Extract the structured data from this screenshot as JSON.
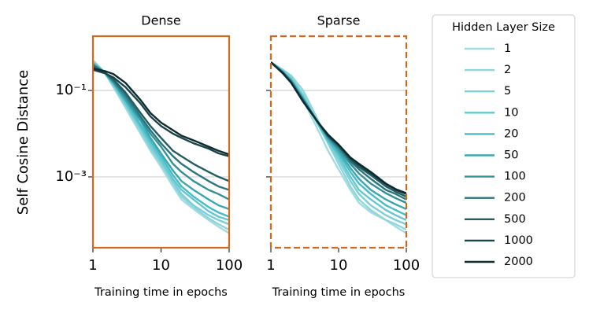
{
  "chart_data": [
    {
      "type": "line",
      "title": "Dense",
      "ylabel": "Self Cosine Distance",
      "xlabel": "Training time in epochs",
      "xscale": "log",
      "yscale": "log",
      "xlim": [
        1,
        100
      ],
      "ylim": [
        2.3e-05,
        1.8
      ],
      "xticks": [
        1,
        10,
        100
      ],
      "yticks": [
        {
          "value": 0.1,
          "label": "10⁻¹"
        },
        {
          "value": 0.001,
          "label": "10⁻³"
        }
      ],
      "grid": true,
      "frame_color": "#d2691e",
      "frame_style": "solid",
      "legend_title": "Hidden Layer Size",
      "legend": "right outside",
      "x": [
        1,
        1.5,
        2,
        3,
        5,
        7,
        10,
        15,
        20,
        30,
        50,
        70,
        100
      ],
      "series": [
        {
          "name": "1",
          "color": "#a3dbe0",
          "values": [
            0.5,
            0.25,
            0.12,
            0.04,
            0.01,
            0.004,
            0.0017,
            0.0006,
            0.0003,
            0.00018,
            0.0001,
            7e-05,
            5e-05
          ]
        },
        {
          "name": "2",
          "color": "#8fd5dc",
          "values": [
            0.5,
            0.26,
            0.13,
            0.045,
            0.011,
            0.0045,
            0.002,
            0.0007,
            0.00035,
            0.0002,
            0.00011,
            8e-05,
            6e-05
          ]
        },
        {
          "name": "5",
          "color": "#7ccfd7",
          "values": [
            0.45,
            0.25,
            0.13,
            0.05,
            0.013,
            0.005,
            0.0022,
            0.0008,
            0.0004,
            0.00022,
            0.00013,
            0.0001,
            8e-05
          ]
        },
        {
          "name": "10",
          "color": "#62c7d0",
          "values": [
            0.45,
            0.26,
            0.14,
            0.05,
            0.014,
            0.006,
            0.0025,
            0.0009,
            0.0005,
            0.0003,
            0.00016,
            0.00012,
            0.0001
          ]
        },
        {
          "name": "20",
          "color": "#48bcc6",
          "values": [
            0.42,
            0.26,
            0.15,
            0.06,
            0.016,
            0.007,
            0.003,
            0.0011,
            0.0006,
            0.00035,
            0.0002,
            0.00015,
            0.00012
          ]
        },
        {
          "name": "50",
          "color": "#3ba7b1",
          "values": [
            0.4,
            0.25,
            0.15,
            0.06,
            0.02,
            0.008,
            0.0035,
            0.0014,
            0.0008,
            0.0005,
            0.0003,
            0.00022,
            0.00018
          ]
        },
        {
          "name": "100",
          "color": "#338f98",
          "values": [
            0.4,
            0.26,
            0.16,
            0.07,
            0.022,
            0.01,
            0.005,
            0.002,
            0.0013,
            0.0008,
            0.0005,
            0.0004,
            0.0003
          ]
        },
        {
          "name": "200",
          "color": "#2b767e",
          "values": [
            0.38,
            0.26,
            0.17,
            0.08,
            0.025,
            0.012,
            0.006,
            0.003,
            0.002,
            0.0013,
            0.0008,
            0.0006,
            0.0005
          ]
        },
        {
          "name": "500",
          "color": "#235d63",
          "values": [
            0.35,
            0.26,
            0.18,
            0.09,
            0.03,
            0.015,
            0.008,
            0.004,
            0.003,
            0.002,
            0.0013,
            0.001,
            0.0008
          ]
        },
        {
          "name": "1000",
          "color": "#19444a",
          "values": [
            0.3,
            0.25,
            0.2,
            0.12,
            0.05,
            0.025,
            0.015,
            0.01,
            0.008,
            0.006,
            0.0045,
            0.0035,
            0.003
          ]
        },
        {
          "name": "2000",
          "color": "#0e2b2f",
          "values": [
            0.32,
            0.28,
            0.24,
            0.15,
            0.06,
            0.03,
            0.018,
            0.012,
            0.009,
            0.007,
            0.005,
            0.004,
            0.0033
          ]
        }
      ]
    },
    {
      "type": "line",
      "title": "Sparse",
      "xlabel": "Training time in epochs",
      "xscale": "log",
      "yscale": "log",
      "xlim": [
        1,
        100
      ],
      "ylim": [
        2.3e-05,
        1.8
      ],
      "xticks": [
        1,
        10,
        100
      ],
      "yticks": [
        0.1,
        0.001
      ],
      "grid": true,
      "frame_color": "#d2691e",
      "frame_style": "dashed",
      "x": [
        1,
        1.5,
        2,
        3,
        5,
        7,
        10,
        15,
        20,
        30,
        50,
        70,
        100
      ],
      "series": [
        {
          "color": "#a3dbe0",
          "values": [
            0.45,
            0.3,
            0.2,
            0.06,
            0.012,
            0.004,
            0.0015,
            0.0005,
            0.00025,
            0.00015,
            0.0001,
            7e-05,
            5e-05
          ]
        },
        {
          "color": "#8fd5dc",
          "values": [
            0.45,
            0.3,
            0.22,
            0.1,
            0.02,
            0.006,
            0.002,
            0.0006,
            0.0003,
            0.00017,
            0.0001,
            8e-05,
            6e-05
          ]
        },
        {
          "color": "#7ccfd7",
          "values": [
            0.45,
            0.3,
            0.2,
            0.08,
            0.016,
            0.006,
            0.0025,
            0.0008,
            0.0004,
            0.00022,
            0.00013,
            0.0001,
            8e-05
          ]
        },
        {
          "color": "#62c7d0",
          "values": [
            0.45,
            0.28,
            0.18,
            0.07,
            0.016,
            0.007,
            0.003,
            0.001,
            0.0005,
            0.0003,
            0.00017,
            0.00013,
            0.0001
          ]
        },
        {
          "color": "#48bcc6",
          "values": [
            0.45,
            0.27,
            0.17,
            0.065,
            0.017,
            0.007,
            0.0035,
            0.0013,
            0.0007,
            0.0004,
            0.00022,
            0.00017,
            0.00013
          ]
        },
        {
          "color": "#3ba7b1",
          "values": [
            0.45,
            0.27,
            0.17,
            0.065,
            0.018,
            0.008,
            0.004,
            0.0016,
            0.0009,
            0.0005,
            0.0003,
            0.00023,
            0.00018
          ]
        },
        {
          "color": "#338f98",
          "values": [
            0.45,
            0.26,
            0.16,
            0.06,
            0.018,
            0.008,
            0.0045,
            0.002,
            0.0012,
            0.0007,
            0.00042,
            0.00032,
            0.00025
          ]
        },
        {
          "color": "#2b767e",
          "values": [
            0.45,
            0.26,
            0.16,
            0.06,
            0.018,
            0.0085,
            0.005,
            0.0023,
            0.0015,
            0.0009,
            0.0005,
            0.0004,
            0.0003
          ]
        },
        {
          "color": "#235d63",
          "values": [
            0.45,
            0.26,
            0.15,
            0.058,
            0.018,
            0.009,
            0.0052,
            0.0025,
            0.0017,
            0.0011,
            0.0006,
            0.00045,
            0.00035
          ]
        },
        {
          "color": "#19444a",
          "values": [
            0.45,
            0.25,
            0.15,
            0.055,
            0.018,
            0.009,
            0.0055,
            0.0027,
            0.0019,
            0.0012,
            0.00068,
            0.0005,
            0.0004
          ]
        },
        {
          "color": "#0e2b2f",
          "values": [
            0.45,
            0.25,
            0.15,
            0.055,
            0.018,
            0.0095,
            0.0056,
            0.0028,
            0.002,
            0.0013,
            0.0007,
            0.00052,
            0.00042
          ]
        }
      ]
    }
  ]
}
